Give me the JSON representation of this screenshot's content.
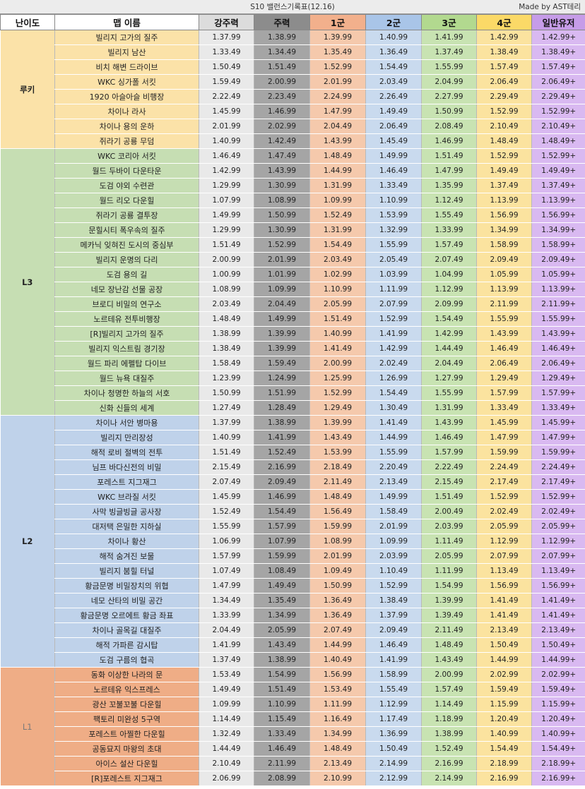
{
  "title": "S10 밸런스기록표(12.16)",
  "credit": "Made by AST테리",
  "headers": [
    "난이도",
    "맵 이름",
    "강주력",
    "주력",
    "1군",
    "2군",
    "3군",
    "4군",
    "일반유저"
  ],
  "column_colors": [
    "#e9e9e9",
    "#a5a5a5",
    "#f5c9ac",
    "#c9daee",
    "#c8e3b2",
    "#fbe39f",
    "#d9b9f1"
  ],
  "header_colors": [
    "#ffffff",
    "#ffffff",
    "#dcdcdc",
    "#8c8c8c",
    "#f2b08c",
    "#a9c5e8",
    "#b2d98f",
    "#fbd967",
    "#c69ce8"
  ],
  "groups": [
    {
      "label": "루키",
      "color": "#fbe2a8",
      "label_color": "#222222",
      "label_weight": "bold",
      "rows": [
        {
          "name": "빌리지 고가의 질주",
          "values": [
            "1.37.99",
            "1.38.99",
            "1.39.99",
            "1.40.99",
            "1.41.99",
            "1.42.99",
            "1.42.99+"
          ]
        },
        {
          "name": "빌리지 남산",
          "values": [
            "1.33.49",
            "1.34.49",
            "1.35.49",
            "1.36.49",
            "1.37.49",
            "1.38.49",
            "1.38.49+"
          ]
        },
        {
          "name": "비치 해변 드라이브",
          "values": [
            "1.50.49",
            "1.51.49",
            "1.52.99",
            "1.54.49",
            "1.55.99",
            "1.57.49",
            "1.57.49+"
          ]
        },
        {
          "name": "WKC 싱가폴 서킷",
          "values": [
            "1.59.49",
            "2.00.99",
            "2.01.99",
            "2.03.49",
            "2.04.99",
            "2.06.49",
            "2.06.49+"
          ]
        },
        {
          "name": "1920 아슬아슬 비행장",
          "values": [
            "2.22.49",
            "2.23.49",
            "2.24.99",
            "2.26.49",
            "2.27.99",
            "2.29.49",
            "2.29.49+"
          ]
        },
        {
          "name": "차이나 라사",
          "values": [
            "1.45.99",
            "1.46.99",
            "1.47.99",
            "1.49.49",
            "1.50.99",
            "1.52.99",
            "1.52.99+"
          ]
        },
        {
          "name": "차이나 용의 운하",
          "values": [
            "2.01.99",
            "2.02.99",
            "2.04.49",
            "2.06.49",
            "2.08.49",
            "2.10.49",
            "2.10.49+"
          ]
        },
        {
          "name": "쥐라기 공룡 무덤",
          "values": [
            "1.40.99",
            "1.42.49",
            "1.43.99",
            "1.45.49",
            "1.46.99",
            "1.48.49",
            "1.48.49+"
          ]
        }
      ]
    },
    {
      "label": "L3",
      "color": "#c6deb3",
      "label_color": "#222222",
      "label_weight": "bold",
      "rows": [
        {
          "name": "WKC 코리아 서킷",
          "values": [
            "1.46.49",
            "1.47.49",
            "1.48.49",
            "1.49.99",
            "1.51.49",
            "1.52.99",
            "1.52.99+"
          ]
        },
        {
          "name": "월드 두바이 다운타운",
          "values": [
            "1.42.99",
            "1.43.99",
            "1.44.99",
            "1.46.49",
            "1.47.99",
            "1.49.49",
            "1.49.49+"
          ]
        },
        {
          "name": "도검 야외 수련관",
          "values": [
            "1.29.99",
            "1.30.99",
            "1.31.99",
            "1.33.49",
            "1.35.99",
            "1.37.49",
            "1.37.49+"
          ]
        },
        {
          "name": "월드 리오 다운힐",
          "values": [
            "1.07.99",
            "1.08.99",
            "1.09.99",
            "1.10.99",
            "1.12.49",
            "1.13.99",
            "1.13.99+"
          ]
        },
        {
          "name": "쥐라기 공룡 결투장",
          "values": [
            "1.49.99",
            "1.50.99",
            "1.52.49",
            "1.53.99",
            "1.55.49",
            "1.56.99",
            "1.56.99+"
          ]
        },
        {
          "name": "문힐시티 폭우속의 질주",
          "values": [
            "1.29.99",
            "1.30.99",
            "1.31.99",
            "1.32.99",
            "1.33.99",
            "1.34.99",
            "1.34.99+"
          ]
        },
        {
          "name": "메카닉 잊혀진 도시의 중심부",
          "values": [
            "1.51.49",
            "1.52.99",
            "1.54.49",
            "1.55.99",
            "1.57.49",
            "1.58.99",
            "1.58.99+"
          ]
        },
        {
          "name": "빌리지 운명의 다리",
          "values": [
            "2.00.99",
            "2.01.99",
            "2.03.49",
            "2.05.49",
            "2.07.49",
            "2.09.49",
            "2.09.49+"
          ]
        },
        {
          "name": "도검 용의 길",
          "values": [
            "1.00.99",
            "1.01.99",
            "1.02.99",
            "1.03.99",
            "1.04.99",
            "1.05.99",
            "1.05.99+"
          ]
        },
        {
          "name": "네모 장난감 선물 공장",
          "values": [
            "1.08.99",
            "1.09.99",
            "1.10.99",
            "1.11.99",
            "1.12.99",
            "1.13.99",
            "1.13.99+"
          ]
        },
        {
          "name": "브로디 비밀의 연구소",
          "values": [
            "2.03.49",
            "2.04.49",
            "2.05.99",
            "2.07.99",
            "2.09.99",
            "2.11.99",
            "2.11.99+"
          ]
        },
        {
          "name": "노르테유 전투비행장",
          "values": [
            "1.48.49",
            "1.49.99",
            "1.51.49",
            "1.52.99",
            "1.54.49",
            "1.55.99",
            "1.55.99+"
          ]
        },
        {
          "name": "[R]빌리지 고가의 질주",
          "values": [
            "1.38.99",
            "1.39.99",
            "1.40.99",
            "1.41.99",
            "1.42.99",
            "1.43.99",
            "1.43.99+"
          ]
        },
        {
          "name": "빌리지 익스트림 경기장",
          "values": [
            "1.38.49",
            "1.39.99",
            "1.41.49",
            "1.42.99",
            "1.44.49",
            "1.46.49",
            "1.46.49+"
          ]
        },
        {
          "name": "월드 파리 에펠탑 다이브",
          "values": [
            "1.58.49",
            "1.59.49",
            "2.00.99",
            "2.02.49",
            "2.04.49",
            "2.06.49",
            "2.06.49+"
          ]
        },
        {
          "name": "월드 뉴욕 대질주",
          "values": [
            "1.23.99",
            "1.24.99",
            "1.25.99",
            "1.26.99",
            "1.27.99",
            "1.29.49",
            "1.29.49+"
          ]
        },
        {
          "name": "차이나 청명한 하늘의 서호",
          "values": [
            "1.50.99",
            "1.51.99",
            "1.52.99",
            "1.54.49",
            "1.55.99",
            "1.57.99",
            "1.57.99+"
          ]
        },
        {
          "name": "신화 신들의 세계",
          "values": [
            "1.27.49",
            "1.28.49",
            "1.29.49",
            "1.30.49",
            "1.31.99",
            "1.33.49",
            "1.33.49+"
          ]
        }
      ]
    },
    {
      "label": "L2",
      "color": "#bfd2ea",
      "label_color": "#222222",
      "label_weight": "bold",
      "rows": [
        {
          "name": "차이나 서안 병마용",
          "values": [
            "1.37.99",
            "1.38.99",
            "1.39.99",
            "1.41.49",
            "1.43.99",
            "1.45.99",
            "1.45.99+"
          ]
        },
        {
          "name": "빌리지 만리장성",
          "values": [
            "1.40.99",
            "1.41.99",
            "1.43.49",
            "1.44.99",
            "1.46.49",
            "1.47.99",
            "1.47.99+"
          ]
        },
        {
          "name": "해적 로비 절벽의 전투",
          "values": [
            "1.51.49",
            "1.52.49",
            "1.53.99",
            "1.55.99",
            "1.57.99",
            "1.59.99",
            "1.59.99+"
          ]
        },
        {
          "name": "님프 바다신전의 비밀",
          "values": [
            "2.15.49",
            "2.16.99",
            "2.18.49",
            "2.20.49",
            "2.22.49",
            "2.24.49",
            "2.24.49+"
          ]
        },
        {
          "name": "포레스트 지그재그",
          "values": [
            "2.07.49",
            "2.09.49",
            "2.11.49",
            "2.13.49",
            "2.15.49",
            "2.17.49",
            "2.17.49+"
          ]
        },
        {
          "name": "WKC 브라질 서킷",
          "values": [
            "1.45.99",
            "1.46.99",
            "1.48.49",
            "1.49.99",
            "1.51.49",
            "1.52.99",
            "1.52.99+"
          ]
        },
        {
          "name": "사막 빙글빙글 공사장",
          "values": [
            "1.52.49",
            "1.54.49",
            "1.56.49",
            "1.58.49",
            "2.00.49",
            "2.02.49",
            "2.02.49+"
          ]
        },
        {
          "name": "대저택 은밀한 지하실",
          "values": [
            "1.55.99",
            "1.57.99",
            "1.59.99",
            "2.01.99",
            "2.03.99",
            "2.05.99",
            "2.05.99+"
          ]
        },
        {
          "name": "차이나 황산",
          "values": [
            "1.06.99",
            "1.07.99",
            "1.08.99",
            "1.09.99",
            "1.11.49",
            "1.12.99",
            "1.12.99+"
          ]
        },
        {
          "name": "해적 숨겨진 보물",
          "values": [
            "1.57.99",
            "1.59.99",
            "2.01.99",
            "2.03.99",
            "2.05.99",
            "2.07.99",
            "2.07.99+"
          ]
        },
        {
          "name": "빌리지 붐힐 터널",
          "values": [
            "1.07.49",
            "1.08.49",
            "1.09.49",
            "1.10.49",
            "1.11.99",
            "1.13.49",
            "1.13.49+"
          ]
        },
        {
          "name": "황금문명 비밀장치의 위협",
          "values": [
            "1.47.99",
            "1.49.49",
            "1.50.99",
            "1.52.99",
            "1.54.99",
            "1.56.99",
            "1.56.99+"
          ]
        },
        {
          "name": "네모 산타의 비밀 공간",
          "values": [
            "1.34.49",
            "1.35.49",
            "1.36.49",
            "1.38.49",
            "1.39.99",
            "1.41.49",
            "1.41.49+"
          ]
        },
        {
          "name": "황금문명 오르에트 황금 좌표",
          "values": [
            "1.33.99",
            "1.34.99",
            "1.36.49",
            "1.37.99",
            "1.39.49",
            "1.41.49",
            "1.41.49+"
          ]
        },
        {
          "name": "차이나 골목길 대질주",
          "values": [
            "2.04.49",
            "2.05.99",
            "2.07.49",
            "2.09.49",
            "2.11.49",
            "2.13.49",
            "2.13.49+"
          ]
        },
        {
          "name": "해적 가파른 감시탑",
          "values": [
            "1.41.99",
            "1.43.49",
            "1.44.99",
            "1.46.49",
            "1.48.49",
            "1.50.49",
            "1.50.49+"
          ]
        },
        {
          "name": "도검 구름의 협곡",
          "values": [
            "1.37.49",
            "1.38.99",
            "1.40.49",
            "1.41.99",
            "1.43.49",
            "1.44.99",
            "1.44.99+"
          ]
        }
      ]
    },
    {
      "label": "L1",
      "color": "#efad86",
      "label_color": "#7a7a7a",
      "label_weight": "normal",
      "rows": [
        {
          "name": "동화 이상한 나라의 문",
          "values": [
            "1.53.49",
            "1.54.99",
            "1.56.99",
            "1.58.99",
            "2.00.99",
            "2.02.99",
            "2.02.99+"
          ]
        },
        {
          "name": "노르테유 익스프레스",
          "values": [
            "1.49.49",
            "1.51.49",
            "1.53.49",
            "1.55.49",
            "1.57.49",
            "1.59.49",
            "1.59.49+"
          ]
        },
        {
          "name": "광산 꼬불꼬불 다운힐",
          "values": [
            "1.09.99",
            "1.10.99",
            "1.11.99",
            "1.12.99",
            "1.14.49",
            "1.15.99",
            "1.15.99+"
          ]
        },
        {
          "name": "팩토리 미완성 5구역",
          "values": [
            "1.14.49",
            "1.15.49",
            "1.16.49",
            "1.17.49",
            "1.18.99",
            "1.20.49",
            "1.20.49+"
          ]
        },
        {
          "name": "포레스트 아찔한 다운힐",
          "values": [
            "1.32.49",
            "1.33.49",
            "1.34.99",
            "1.36.99",
            "1.38.99",
            "1.40.99",
            "1.40.99+"
          ]
        },
        {
          "name": "공동묘지 마왕의 초대",
          "values": [
            "1.44.49",
            "1.46.49",
            "1.48.49",
            "1.50.49",
            "1.52.49",
            "1.54.49",
            "1.54.49+"
          ]
        },
        {
          "name": "아이스 설산 다운힐",
          "values": [
            "2.10.49",
            "2.11.99",
            "2.13.49",
            "2.14.99",
            "2.16.99",
            "2.18.99",
            "2.18.99+"
          ]
        },
        {
          "name": "[R]포레스트 지그재그",
          "values": [
            "2.06.99",
            "2.08.99",
            "2.10.99",
            "2.12.99",
            "2.14.99",
            "2.16.99",
            "2.16.99+"
          ]
        }
      ]
    }
  ]
}
